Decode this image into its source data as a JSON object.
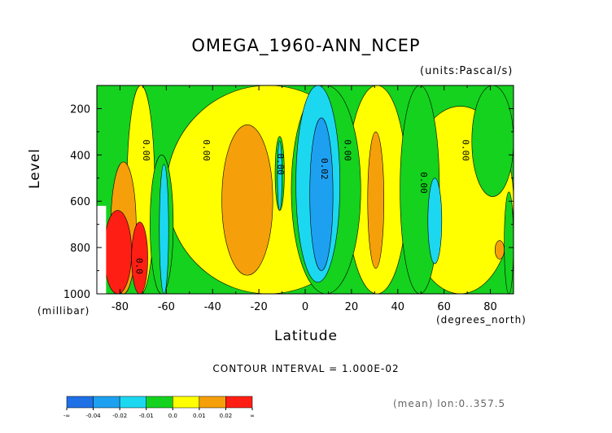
{
  "chart_data": {
    "type": "heatmap",
    "title": "OMEGA_1960-ANN_NCEP",
    "units_label": "(units:Pascal/s)",
    "xlabel": "Latitude",
    "ylabel": "Level",
    "x_units_label": "(degrees_north)",
    "y_units_label": "(millibar)",
    "x_ticks": [
      -80,
      -60,
      -40,
      -20,
      0,
      20,
      40,
      60,
      80
    ],
    "y_ticks": [
      200,
      400,
      600,
      800,
      1000
    ],
    "xlim": [
      -90,
      90
    ],
    "ylim": [
      1000,
      100
    ],
    "y_reversed": true,
    "contour_interval_text": "CONTOUR INTERVAL = 1.000E-02",
    "footnote": "(mean) lon:0..357.5",
    "contour_labels": [
      {
        "text": "0.00",
        "lat": -70,
        "lev": 380
      },
      {
        "text": "0.00",
        "lat": -44,
        "lev": 380
      },
      {
        "text": "0.00",
        "lat": -12,
        "lev": 440
      },
      {
        "text": "0.02",
        "lat": 7,
        "lev": 460
      },
      {
        "text": "0.00",
        "lat": 17,
        "lev": 380
      },
      {
        "text": "0.00",
        "lat": 50,
        "lev": 520
      },
      {
        "text": "0.00",
        "lat": 68,
        "lev": 380
      },
      {
        "text": "0.0",
        "lat": -73,
        "lev": 880
      }
    ],
    "colorbar": {
      "bins": [
        {
          "color": "#1f6fe6",
          "label": "-∞ to -0.04"
        },
        {
          "color": "#1ea0f0",
          "label": "-0.04 to -0.02"
        },
        {
          "color": "#1cd7f0",
          "label": "-0.02 to -0.01"
        },
        {
          "color": "#14d21e",
          "label": "-0.01 to 0.0"
        },
        {
          "color": "#ffff00",
          "label": "0.0 to 0.01"
        },
        {
          "color": "#f5a00a",
          "label": "0.01 to 0.02"
        },
        {
          "color": "#ff1e14",
          "label": "0.02 to ∞"
        }
      ],
      "tick_labels": [
        "-∞",
        "-0.04",
        "-0.02",
        "-0.01",
        "0.0",
        "0.01",
        "0.02",
        "∞"
      ]
    },
    "regions": [
      {
        "fill": "green",
        "desc": "background",
        "lat": [
          -90,
          90
        ],
        "lev": [
          100,
          1000
        ]
      },
      {
        "fill": "yellow",
        "lat": [
          -77,
          -65
        ],
        "lev": [
          100,
          1000
        ]
      },
      {
        "fill": "orange",
        "lat": [
          -84,
          -73
        ],
        "lev": [
          430,
          1000
        ]
      },
      {
        "fill": "red",
        "lat": [
          -87,
          -75
        ],
        "lev": [
          640,
          1000
        ]
      },
      {
        "fill": "red",
        "lat": [
          -75,
          -68
        ],
        "lev": [
          690,
          1000
        ]
      },
      {
        "fill": "yellow",
        "lat": [
          -60,
          28
        ],
        "lev": [
          100,
          1000
        ]
      },
      {
        "fill": "yellow",
        "lat": [
          18,
          44
        ],
        "lev": [
          100,
          1000
        ]
      },
      {
        "fill": "yellow",
        "lat": [
          44,
          90
        ],
        "lev": [
          190,
          1000
        ]
      },
      {
        "fill": "green",
        "lat": [
          -13,
          -9
        ],
        "lev": [
          320,
          640
        ]
      },
      {
        "fill": "green",
        "lat": [
          -6,
          24
        ],
        "lev": [
          100,
          1000
        ]
      },
      {
        "fill": "green",
        "lat": [
          -67,
          -57
        ],
        "lev": [
          400,
          1000
        ]
      },
      {
        "fill": "green",
        "lat": [
          41,
          58
        ],
        "lev": [
          100,
          1000
        ]
      },
      {
        "fill": "green",
        "lat": [
          72,
          90
        ],
        "lev": [
          100,
          580
        ]
      },
      {
        "fill": "green",
        "lat": [
          86,
          90
        ],
        "lev": [
          560,
          1000
        ]
      },
      {
        "fill": "cyan",
        "lat": [
          -63,
          -59
        ],
        "lev": [
          440,
          1000
        ]
      },
      {
        "fill": "cyan",
        "lat": [
          -12,
          -10
        ],
        "lev": [
          340,
          640
        ]
      },
      {
        "fill": "cyan",
        "lat": [
          -4,
          15
        ],
        "lev": [
          100,
          950
        ]
      },
      {
        "fill": "cyan",
        "lat": [
          53,
          59
        ],
        "lev": [
          500,
          870
        ]
      },
      {
        "fill": "blue",
        "lat": [
          2,
          12
        ],
        "lev": [
          240,
          900
        ]
      },
      {
        "fill": "orange",
        "lat": [
          -36,
          -14
        ],
        "lev": [
          270,
          920
        ]
      },
      {
        "fill": "orange",
        "lat": [
          27,
          34
        ],
        "lev": [
          300,
          890
        ]
      },
      {
        "fill": "orange",
        "lat": [
          82,
          86
        ],
        "lev": [
          770,
          850
        ]
      }
    ]
  }
}
